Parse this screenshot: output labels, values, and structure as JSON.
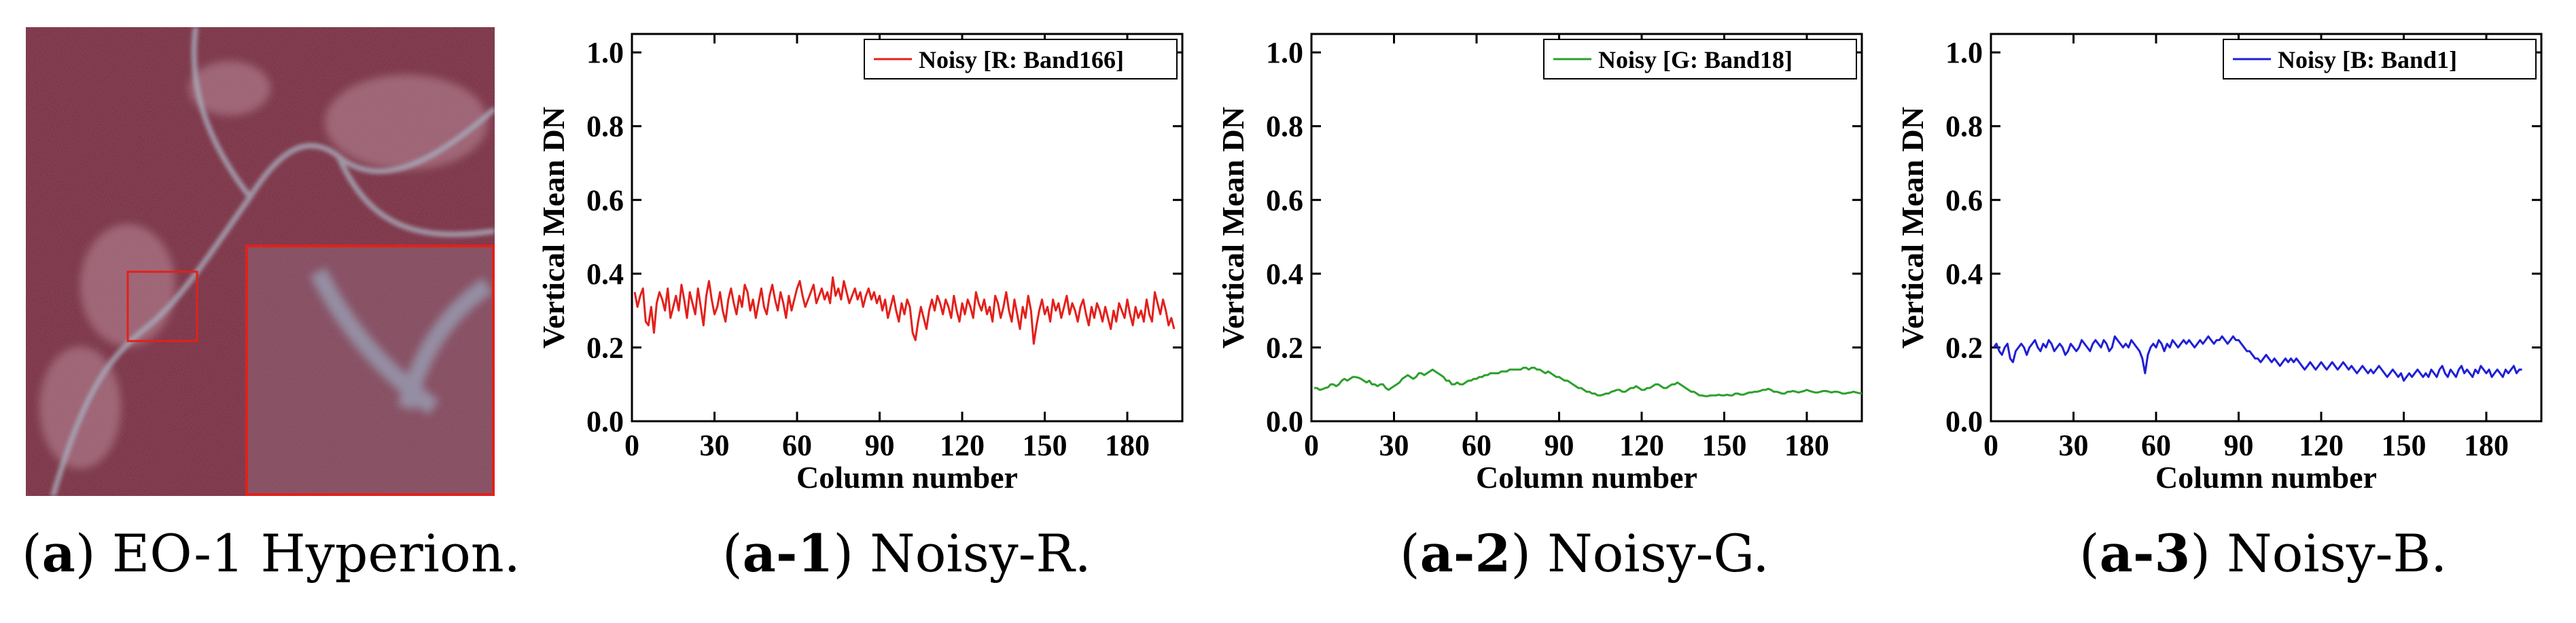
{
  "panels": [
    {
      "caption_prefix": "(",
      "caption_id": "a",
      "caption_suffix": ") EO-1 Hyperion."
    },
    {
      "caption_prefix": "(",
      "caption_id": "a-1",
      "caption_suffix": ") Noisy-R."
    },
    {
      "caption_prefix": "(",
      "caption_id": "a-2",
      "caption_suffix": ") Noisy-G."
    },
    {
      "caption_prefix": "(",
      "caption_id": "a-3",
      "caption_suffix": ") Noisy-B."
    }
  ],
  "image": {
    "description_name": "EO-1 Hyperion false color image",
    "zoom_box_color": "#e3201b"
  },
  "chart_data": [
    {
      "type": "line",
      "xlabel": "Column number",
      "ylabel": "Vertical Mean DN",
      "xlim": [
        0,
        200
      ],
      "ylim": [
        0.0,
        1.05
      ],
      "xticks": [
        "0",
        "30",
        "60",
        "90",
        "120",
        "150",
        "180"
      ],
      "yticks": [
        "0.0",
        "0.2",
        "0.4",
        "0.6",
        "0.8",
        "1.0"
      ],
      "legend": "Noisy [R: Band166]",
      "legend_position": "top-right",
      "color": "#e3201b",
      "series": [
        {
          "name": "Noisy [R: Band166]",
          "x_start": 1,
          "x_step": 1,
          "values": [
            0.35,
            0.31,
            0.34,
            0.36,
            0.27,
            0.26,
            0.31,
            0.24,
            0.32,
            0.35,
            0.33,
            0.3,
            0.36,
            0.28,
            0.31,
            0.34,
            0.3,
            0.37,
            0.33,
            0.28,
            0.35,
            0.32,
            0.29,
            0.36,
            0.31,
            0.26,
            0.34,
            0.38,
            0.33,
            0.29,
            0.31,
            0.35,
            0.3,
            0.27,
            0.33,
            0.36,
            0.32,
            0.29,
            0.34,
            0.31,
            0.37,
            0.35,
            0.3,
            0.33,
            0.28,
            0.32,
            0.36,
            0.31,
            0.29,
            0.34,
            0.37,
            0.33,
            0.3,
            0.35,
            0.32,
            0.28,
            0.34,
            0.3,
            0.33,
            0.36,
            0.38,
            0.34,
            0.31,
            0.33,
            0.35,
            0.37,
            0.32,
            0.34,
            0.36,
            0.33,
            0.35,
            0.32,
            0.39,
            0.34,
            0.36,
            0.33,
            0.38,
            0.35,
            0.32,
            0.34,
            0.36,
            0.33,
            0.35,
            0.31,
            0.34,
            0.36,
            0.33,
            0.35,
            0.32,
            0.34,
            0.3,
            0.33,
            0.28,
            0.31,
            0.34,
            0.3,
            0.27,
            0.32,
            0.29,
            0.33,
            0.31,
            0.24,
            0.22,
            0.27,
            0.31,
            0.28,
            0.25,
            0.3,
            0.33,
            0.3,
            0.34,
            0.32,
            0.29,
            0.33,
            0.31,
            0.28,
            0.34,
            0.3,
            0.27,
            0.32,
            0.29,
            0.33,
            0.31,
            0.28,
            0.35,
            0.32,
            0.3,
            0.33,
            0.29,
            0.31,
            0.27,
            0.34,
            0.32,
            0.28,
            0.31,
            0.35,
            0.3,
            0.27,
            0.33,
            0.29,
            0.25,
            0.31,
            0.28,
            0.34,
            0.3,
            0.21,
            0.26,
            0.3,
            0.33,
            0.29,
            0.31,
            0.27,
            0.33,
            0.3,
            0.32,
            0.28,
            0.31,
            0.34,
            0.29,
            0.32,
            0.3,
            0.27,
            0.31,
            0.33,
            0.29,
            0.26,
            0.31,
            0.28,
            0.32,
            0.3,
            0.27,
            0.31,
            0.28,
            0.25,
            0.3,
            0.27,
            0.32,
            0.3,
            0.28,
            0.33,
            0.29,
            0.26,
            0.31,
            0.28,
            0.3,
            0.27,
            0.33,
            0.29,
            0.27,
            0.35,
            0.32,
            0.29,
            0.33,
            0.3,
            0.26,
            0.28,
            0.25
          ]
        }
      ]
    },
    {
      "type": "line",
      "xlabel": "Column number",
      "ylabel": "Vertical Mean DN",
      "xlim": [
        0,
        200
      ],
      "ylim": [
        0.0,
        1.05
      ],
      "xticks": [
        "0",
        "30",
        "60",
        "90",
        "120",
        "150",
        "180"
      ],
      "yticks": [
        "0.0",
        "0.2",
        "0.4",
        "0.6",
        "0.8",
        "1.0"
      ],
      "legend": "Noisy [G: Band18]",
      "legend_position": "top-right",
      "color": "#2ca02c",
      "series": [
        {
          "name": "Noisy [G: Band18]",
          "x_start": 1,
          "x_step": 1,
          "values": [
            0.09,
            0.09,
            0.085,
            0.087,
            0.09,
            0.092,
            0.1,
            0.1,
            0.095,
            0.1,
            0.11,
            0.115,
            0.11,
            0.115,
            0.12,
            0.12,
            0.118,
            0.115,
            0.11,
            0.105,
            0.11,
            0.1,
            0.1,
            0.095,
            0.1,
            0.1,
            0.09,
            0.085,
            0.09,
            0.095,
            0.1,
            0.105,
            0.115,
            0.12,
            0.125,
            0.12,
            0.115,
            0.12,
            0.13,
            0.13,
            0.125,
            0.13,
            0.135,
            0.14,
            0.135,
            0.13,
            0.125,
            0.12,
            0.11,
            0.11,
            0.1,
            0.1,
            0.105,
            0.1,
            0.1,
            0.105,
            0.11,
            0.11,
            0.115,
            0.115,
            0.12,
            0.12,
            0.125,
            0.125,
            0.13,
            0.13,
            0.13,
            0.13,
            0.135,
            0.135,
            0.135,
            0.14,
            0.14,
            0.14,
            0.14,
            0.14,
            0.145,
            0.145,
            0.14,
            0.145,
            0.145,
            0.14,
            0.14,
            0.135,
            0.13,
            0.135,
            0.13,
            0.125,
            0.12,
            0.12,
            0.115,
            0.11,
            0.11,
            0.105,
            0.1,
            0.095,
            0.09,
            0.09,
            0.085,
            0.08,
            0.08,
            0.075,
            0.075,
            0.07,
            0.07,
            0.072,
            0.075,
            0.075,
            0.08,
            0.082,
            0.085,
            0.085,
            0.08,
            0.08,
            0.085,
            0.09,
            0.09,
            0.095,
            0.09,
            0.085,
            0.085,
            0.09,
            0.09,
            0.095,
            0.1,
            0.1,
            0.095,
            0.09,
            0.09,
            0.095,
            0.1,
            0.1,
            0.105,
            0.1,
            0.095,
            0.09,
            0.085,
            0.08,
            0.08,
            0.075,
            0.07,
            0.07,
            0.068,
            0.068,
            0.07,
            0.07,
            0.07,
            0.072,
            0.07,
            0.07,
            0.072,
            0.07,
            0.07,
            0.075,
            0.075,
            0.072,
            0.072,
            0.075,
            0.078,
            0.078,
            0.08,
            0.08,
            0.082,
            0.085,
            0.085,
            0.088,
            0.085,
            0.08,
            0.08,
            0.078,
            0.075,
            0.075,
            0.08,
            0.08,
            0.082,
            0.08,
            0.078,
            0.08,
            0.082,
            0.085,
            0.082,
            0.08,
            0.078,
            0.078,
            0.08,
            0.082,
            0.082,
            0.08,
            0.078,
            0.08,
            0.08,
            0.078,
            0.075,
            0.075,
            0.077,
            0.078,
            0.08,
            0.078,
            0.076,
            0.075
          ]
        }
      ]
    },
    {
      "type": "line",
      "xlabel": "Column number",
      "ylabel": "Vertical Mean DN",
      "xlim": [
        0,
        200
      ],
      "ylim": [
        0.0,
        1.05
      ],
      "xticks": [
        "0",
        "30",
        "60",
        "90",
        "120",
        "150",
        "180"
      ],
      "yticks": [
        "0.0",
        "0.2",
        "0.4",
        "0.6",
        "0.8",
        "1.0"
      ],
      "legend": "Noisy [B: Band1]",
      "legend_position": "top-right",
      "color": "#1f1fd6",
      "series": [
        {
          "name": "Noisy [B: Band1]",
          "x_start": 1,
          "x_step": 1,
          "values": [
            0.2,
            0.21,
            0.19,
            0.18,
            0.2,
            0.21,
            0.17,
            0.16,
            0.19,
            0.2,
            0.21,
            0.2,
            0.18,
            0.2,
            0.21,
            0.22,
            0.2,
            0.19,
            0.21,
            0.2,
            0.22,
            0.21,
            0.19,
            0.2,
            0.21,
            0.2,
            0.18,
            0.19,
            0.21,
            0.2,
            0.19,
            0.2,
            0.22,
            0.21,
            0.2,
            0.19,
            0.21,
            0.22,
            0.21,
            0.2,
            0.22,
            0.21,
            0.19,
            0.2,
            0.23,
            0.22,
            0.21,
            0.2,
            0.21,
            0.2,
            0.22,
            0.21,
            0.2,
            0.19,
            0.17,
            0.13,
            0.18,
            0.2,
            0.21,
            0.2,
            0.22,
            0.21,
            0.19,
            0.21,
            0.2,
            0.22,
            0.21,
            0.2,
            0.21,
            0.22,
            0.21,
            0.22,
            0.21,
            0.2,
            0.21,
            0.22,
            0.21,
            0.22,
            0.23,
            0.22,
            0.21,
            0.22,
            0.22,
            0.23,
            0.22,
            0.21,
            0.22,
            0.23,
            0.22,
            0.22,
            0.21,
            0.2,
            0.19,
            0.19,
            0.18,
            0.17,
            0.17,
            0.16,
            0.17,
            0.18,
            0.17,
            0.16,
            0.17,
            0.16,
            0.15,
            0.16,
            0.17,
            0.16,
            0.17,
            0.16,
            0.17,
            0.16,
            0.15,
            0.14,
            0.15,
            0.16,
            0.15,
            0.14,
            0.15,
            0.16,
            0.15,
            0.14,
            0.15,
            0.16,
            0.15,
            0.14,
            0.15,
            0.16,
            0.15,
            0.14,
            0.15,
            0.14,
            0.13,
            0.14,
            0.15,
            0.14,
            0.13,
            0.14,
            0.13,
            0.14,
            0.15,
            0.14,
            0.13,
            0.12,
            0.13,
            0.14,
            0.13,
            0.12,
            0.13,
            0.11,
            0.12,
            0.13,
            0.12,
            0.13,
            0.14,
            0.13,
            0.12,
            0.13,
            0.12,
            0.14,
            0.13,
            0.12,
            0.14,
            0.15,
            0.13,
            0.12,
            0.14,
            0.13,
            0.12,
            0.14,
            0.15,
            0.13,
            0.14,
            0.13,
            0.12,
            0.14,
            0.13,
            0.15,
            0.14,
            0.13,
            0.14,
            0.12,
            0.13,
            0.14,
            0.13,
            0.12,
            0.14,
            0.13,
            0.14,
            0.15,
            0.13,
            0.14,
            0.14
          ]
        }
      ]
    }
  ]
}
